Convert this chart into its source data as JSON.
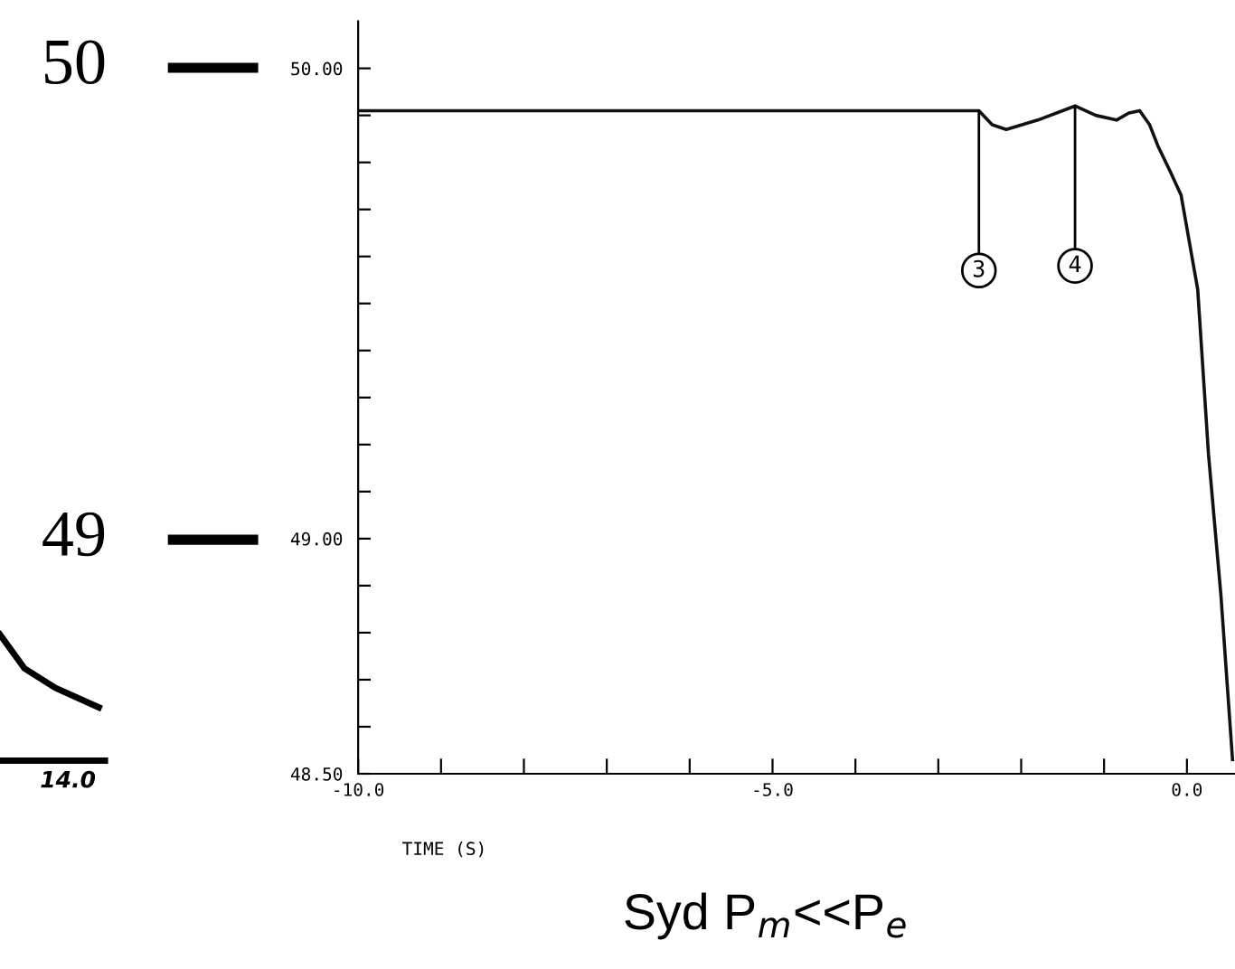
{
  "chart_data": {
    "type": "line",
    "xlabel": "TIME (S)",
    "x": [
      -10,
      -8,
      -6,
      -4,
      -2.51,
      -2.35,
      -2.18,
      -1.8,
      -1.35,
      -1.1,
      -0.85,
      -0.7,
      -0.57,
      -0.45,
      -0.35,
      -0.2,
      -0.07,
      0.13,
      0.26,
      0.41,
      0.55
    ],
    "series": [
      {
        "color": "#111111",
        "values": [
          49.91,
          49.91,
          49.91,
          49.91,
          49.91,
          49.88,
          49.87,
          49.89,
          49.92,
          49.9,
          49.89,
          49.905,
          49.91,
          49.88,
          49.835,
          49.78,
          49.73,
          49.53,
          49.18,
          48.88,
          48.53
        ]
      }
    ],
    "xlim": [
      -10,
      0.58
    ],
    "ylim": [
      48.5,
      50.1
    ],
    "xticks": [
      {
        "value": -10,
        "label": "-10.0"
      },
      {
        "value": -9,
        "label": null
      },
      {
        "value": -8,
        "label": null
      },
      {
        "value": -7,
        "label": null
      },
      {
        "value": -6,
        "label": null
      },
      {
        "value": -5,
        "label": "-5.0"
      },
      {
        "value": -4,
        "label": null
      },
      {
        "value": -3,
        "label": null
      },
      {
        "value": -2,
        "label": null
      },
      {
        "value": -1,
        "label": null
      },
      {
        "value": 0,
        "label": "0.0"
      }
    ],
    "yticks": [
      {
        "value": 48.5,
        "label": "48.50"
      },
      {
        "value": 48.6,
        "label": null
      },
      {
        "value": 48.7,
        "label": null
      },
      {
        "value": 48.8,
        "label": null
      },
      {
        "value": 48.9,
        "label": null
      },
      {
        "value": 49,
        "label": "49.00"
      },
      {
        "value": 49.1,
        "label": null
      },
      {
        "value": 49.2,
        "label": null
      },
      {
        "value": 49.3,
        "label": null
      },
      {
        "value": 49.4,
        "label": null
      },
      {
        "value": 49.5,
        "label": null
      },
      {
        "value": 49.6,
        "label": null
      },
      {
        "value": 49.7,
        "label": null
      },
      {
        "value": 49.8,
        "label": null
      },
      {
        "value": 49.9,
        "label": null
      },
      {
        "value": 50,
        "label": "50.00"
      }
    ],
    "annotations": [
      "50",
      "49",
      {
        "text": "3",
        "x": -2.51,
        "y": 49.91
      },
      {
        "text": "4",
        "x": -1.35,
        "y": 49.92
      },
      "Syd P$_{m}$<<P$_{e}$",
      "14.0"
    ]
  }
}
